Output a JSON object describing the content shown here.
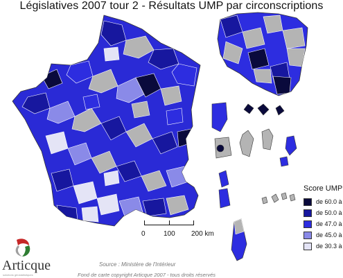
{
  "title": "Législatives 2007 tour 2 - Résultats UMP par circonscriptions",
  "legend": {
    "title": "Score UMP",
    "items": [
      {
        "label": "de 60.0 à",
        "color": "#0a0a3c"
      },
      {
        "label": "de 50.0 à",
        "color": "#17179e"
      },
      {
        "label": "de 47.0 à",
        "color": "#2d2de0"
      },
      {
        "label": "de 45.0 à",
        "color": "#8a8ae8"
      },
      {
        "label": "de 30.3 à",
        "color": "#e4e4f6"
      }
    ],
    "no_data_color": "#b4b4b4"
  },
  "scale": {
    "labels": [
      "0",
      "100",
      "200 km"
    ]
  },
  "source": "Source : Ministère de l'Intérieur",
  "copyright": "Fond de carte copyright Articque 2007 - tous droits réservés",
  "logo": {
    "name": "Articque",
    "tagline": "solutions géostatistiques"
  }
}
